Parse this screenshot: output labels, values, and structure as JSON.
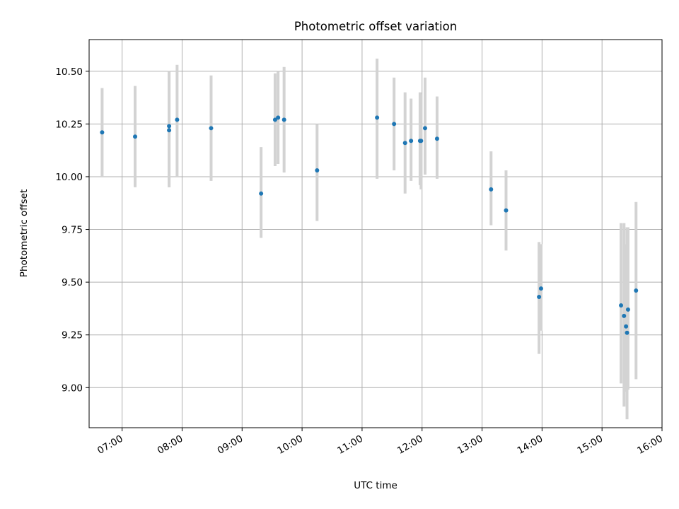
{
  "chart_data": {
    "type": "scatter",
    "title": "Photometric offset variation",
    "xlabel": "UTC time",
    "ylabel": "Photometric offset",
    "x_ticks": [
      "07:00",
      "08:00",
      "09:00",
      "10:00",
      "11:00",
      "12:00",
      "13:00",
      "14:00",
      "15:00",
      "16:00"
    ],
    "y_ticks": [
      "9.00",
      "9.25",
      "9.50",
      "9.75",
      "10.00",
      "10.25",
      "10.50"
    ],
    "y_tick_values": [
      9.0,
      9.25,
      9.5,
      9.75,
      10.0,
      10.25,
      10.5
    ],
    "xlim": [
      "06:27",
      "16:00"
    ],
    "ylim": [
      8.81,
      10.65
    ],
    "grid": true,
    "point_color": "#1f77b4",
    "errorbar_color": "#d3d3d3",
    "points": [
      {
        "t": "06:40",
        "y": 10.21,
        "lo": 10.0,
        "hi": 10.42
      },
      {
        "t": "07:13",
        "y": 10.19,
        "lo": 9.95,
        "hi": 10.43
      },
      {
        "t": "07:47",
        "y": 10.24,
        "lo": 9.95,
        "hi": 10.5
      },
      {
        "t": "07:47",
        "y": 10.22,
        "lo": 9.95,
        "hi": 10.5
      },
      {
        "t": "07:55",
        "y": 10.27,
        "lo": 10.0,
        "hi": 10.53
      },
      {
        "t": "08:29",
        "y": 10.23,
        "lo": 9.98,
        "hi": 10.48
      },
      {
        "t": "09:19",
        "y": 9.92,
        "lo": 9.71,
        "hi": 10.14
      },
      {
        "t": "09:33",
        "y": 10.27,
        "lo": 10.05,
        "hi": 10.49
      },
      {
        "t": "09:36",
        "y": 10.28,
        "lo": 10.06,
        "hi": 10.5
      },
      {
        "t": "09:42",
        "y": 10.27,
        "lo": 10.02,
        "hi": 10.52
      },
      {
        "t": "10:15",
        "y": 10.03,
        "lo": 9.79,
        "hi": 10.25
      },
      {
        "t": "11:15",
        "y": 10.28,
        "lo": 9.99,
        "hi": 10.56
      },
      {
        "t": "11:32",
        "y": 10.25,
        "lo": 10.03,
        "hi": 10.47
      },
      {
        "t": "11:43",
        "y": 10.16,
        "lo": 9.92,
        "hi": 10.4
      },
      {
        "t": "11:49",
        "y": 10.17,
        "lo": 9.98,
        "hi": 10.37
      },
      {
        "t": "11:58",
        "y": 10.17,
        "lo": 9.96,
        "hi": 10.4
      },
      {
        "t": "11:59",
        "y": 10.17,
        "lo": 9.94,
        "hi": 10.39
      },
      {
        "t": "12:03",
        "y": 10.23,
        "lo": 10.01,
        "hi": 10.47
      },
      {
        "t": "12:15",
        "y": 10.18,
        "lo": 9.99,
        "hi": 10.38
      },
      {
        "t": "13:09",
        "y": 9.94,
        "lo": 9.77,
        "hi": 10.12
      },
      {
        "t": "13:24",
        "y": 9.84,
        "lo": 9.65,
        "hi": 10.03
      },
      {
        "t": "13:57",
        "y": 9.43,
        "lo": 9.16,
        "hi": 9.69
      },
      {
        "t": "13:59",
        "y": 9.47,
        "lo": 9.27,
        "hi": 9.68
      },
      {
        "t": "15:19",
        "y": 9.39,
        "lo": 9.02,
        "hi": 9.78
      },
      {
        "t": "15:22",
        "y": 9.34,
        "lo": 8.91,
        "hi": 9.78
      },
      {
        "t": "15:24",
        "y": 9.29,
        "lo": 8.98,
        "hi": 9.68
      },
      {
        "t": "15:25",
        "y": 9.26,
        "lo": 8.85,
        "hi": 9.76
      },
      {
        "t": "15:26",
        "y": 9.37,
        "lo": 8.99,
        "hi": 9.76
      },
      {
        "t": "15:34",
        "y": 9.46,
        "lo": 9.04,
        "hi": 9.88
      }
    ]
  }
}
